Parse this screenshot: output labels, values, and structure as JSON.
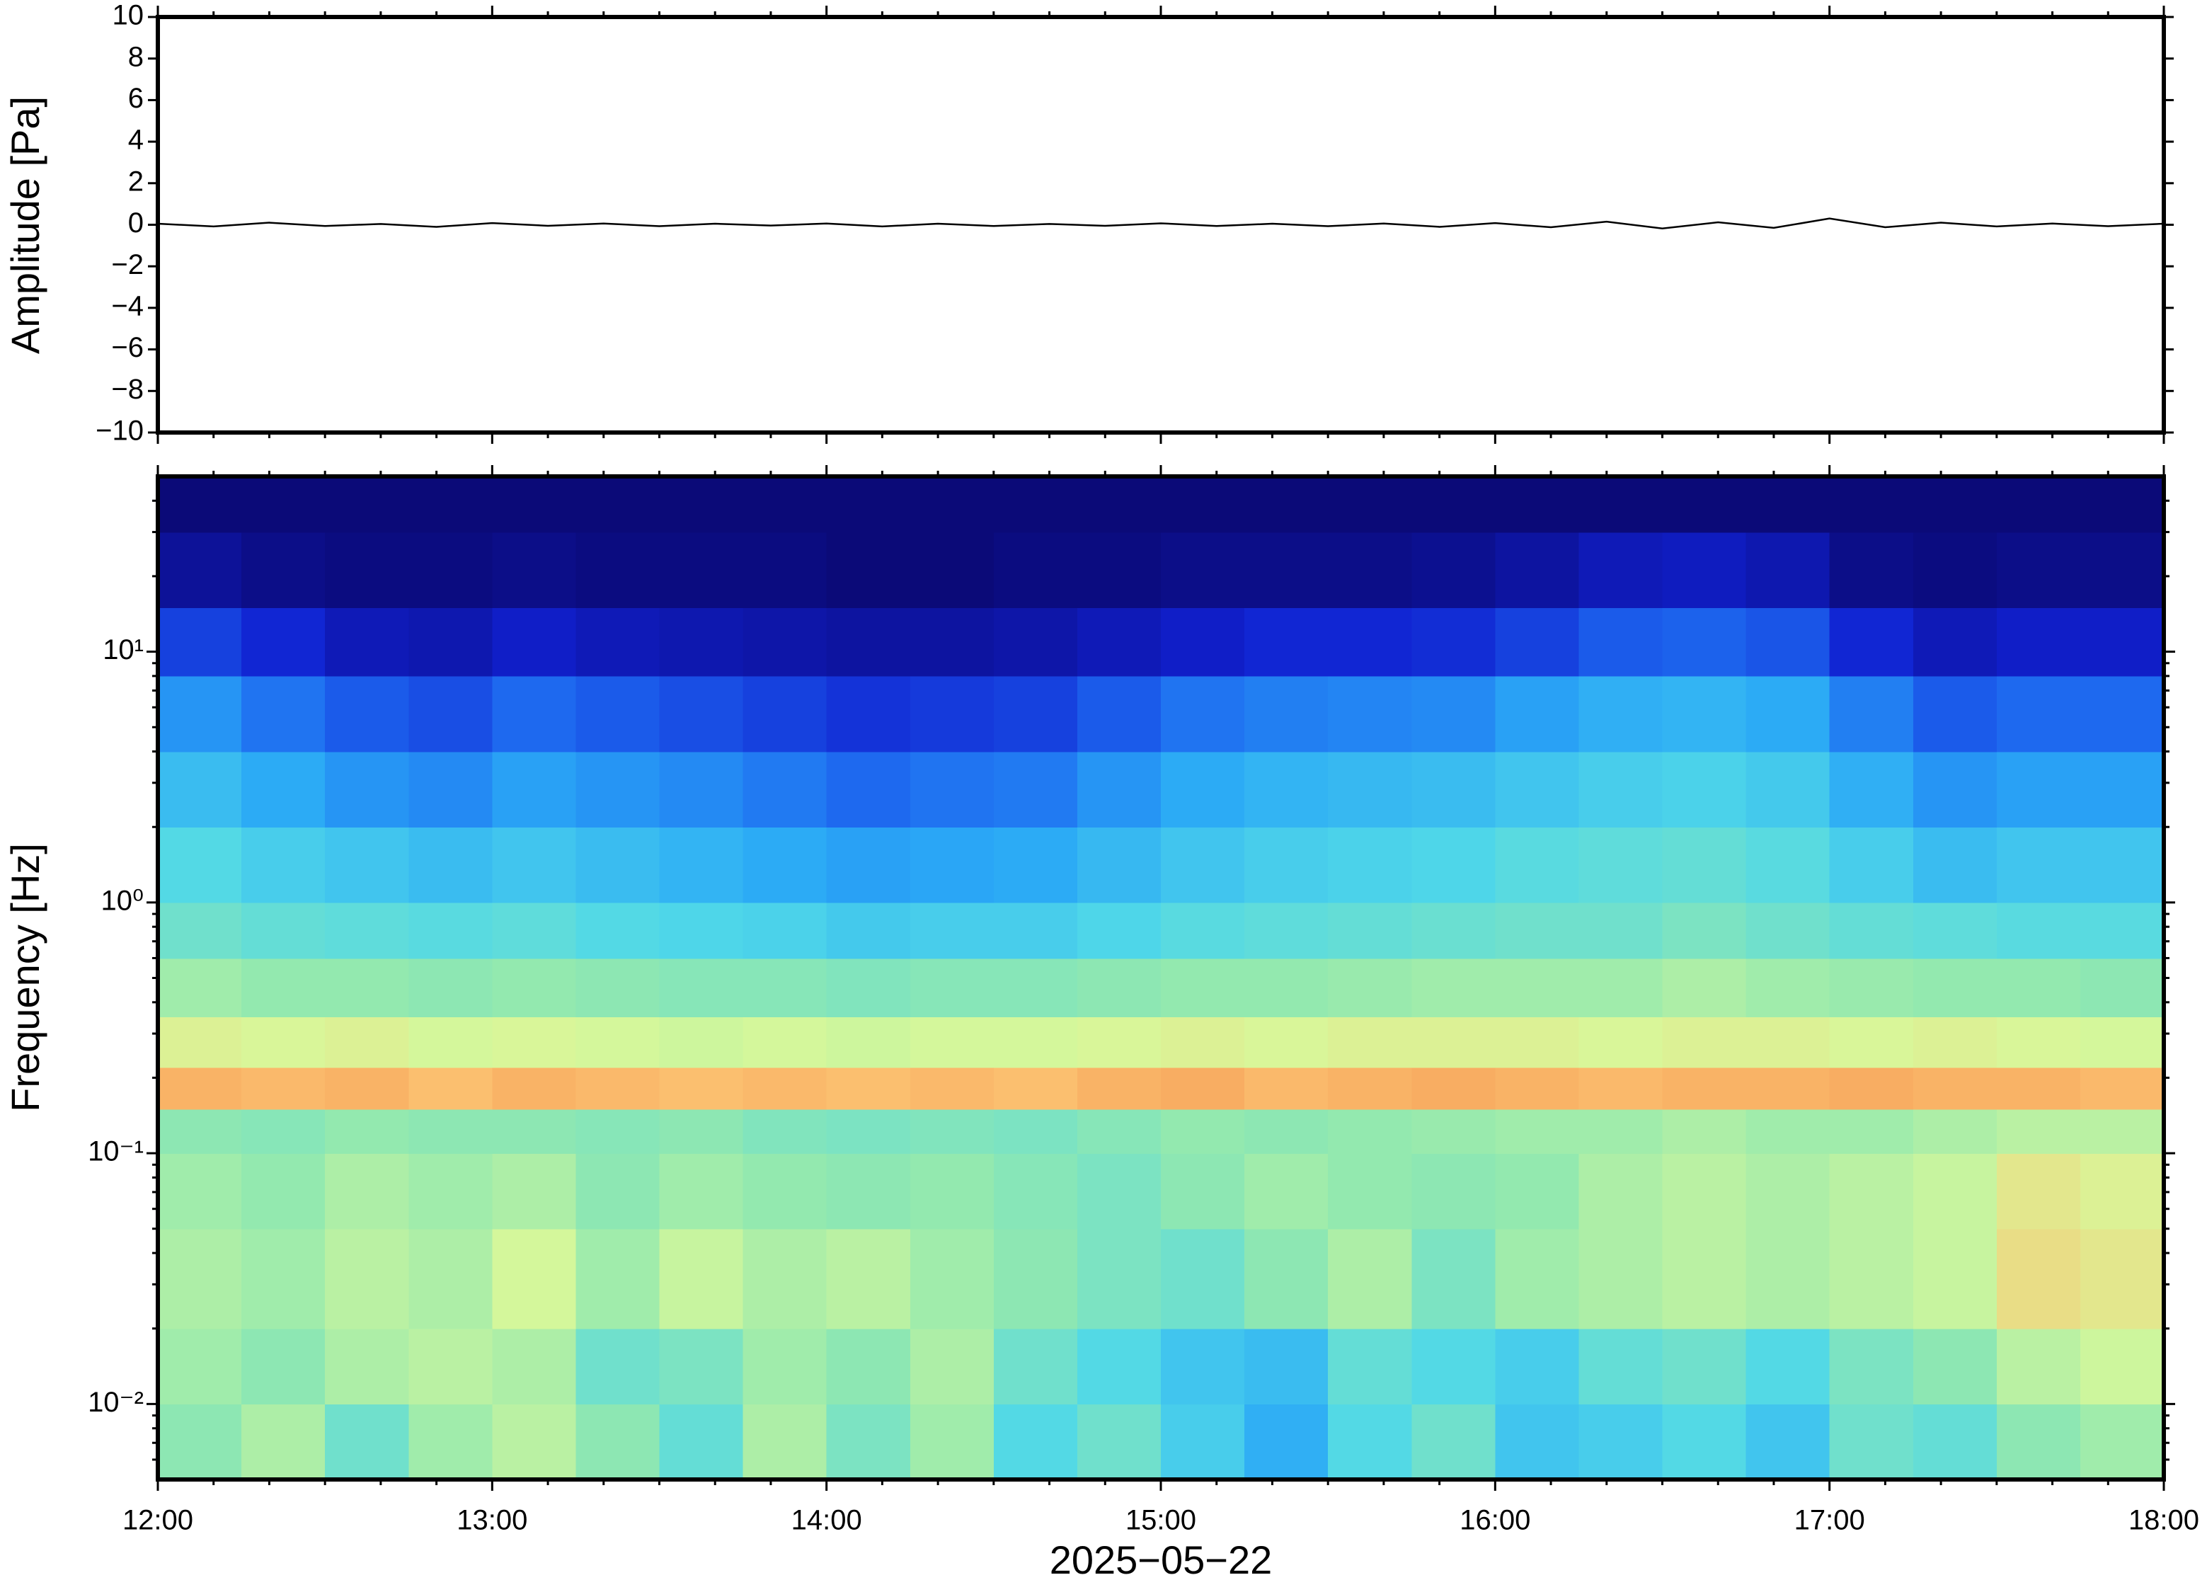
{
  "chart_data": [
    {
      "type": "line",
      "ylabel": "Amplitude [Pa]",
      "color": "#000000",
      "xlim": [
        12,
        18
      ],
      "x": [
        12,
        12.1667,
        12.3333,
        12.5,
        12.6667,
        12.8333,
        13,
        13.1667,
        13.3333,
        13.5,
        13.6667,
        13.8333,
        14,
        14.1667,
        14.3333,
        14.5,
        14.6667,
        14.8333,
        15,
        15.1667,
        15.3333,
        15.5,
        15.6667,
        15.8333,
        16,
        16.1667,
        16.3333,
        16.5,
        16.6667,
        16.8333,
        17,
        17.1667,
        17.3333,
        17.5,
        17.6667,
        17.8333,
        18
      ],
      "values": [
        0.05,
        -0.08,
        0.1,
        -0.06,
        0.04,
        -0.1,
        0.08,
        -0.05,
        0.06,
        -0.07,
        0.05,
        -0.04,
        0.06,
        -0.08,
        0.05,
        -0.06,
        0.04,
        -0.05,
        0.07,
        -0.06,
        0.05,
        -0.07,
        0.06,
        -0.1,
        0.08,
        -0.12,
        0.15,
        -0.18,
        0.12,
        -0.15,
        0.3,
        -0.12,
        0.1,
        -0.08,
        0.06,
        -0.07,
        0.05
      ],
      "ylim": [
        -10,
        10
      ],
      "yticks": [
        {
          "value": -10,
          "label": "−10"
        },
        {
          "value": -8,
          "label": "−8"
        },
        {
          "value": -6,
          "label": "−6"
        },
        {
          "value": -4,
          "label": "−4"
        },
        {
          "value": -2,
          "label": "−2"
        },
        0,
        2,
        4,
        6,
        8,
        10
      ]
    },
    {
      "type": "heatmap",
      "ylabel": "Frequency [Hz]",
      "xlabel": "2025−05−22",
      "log_y": true,
      "xlim": [
        12,
        18
      ],
      "xticks": [
        {
          "value": 12,
          "label": "12:00"
        },
        {
          "value": 13,
          "label": "13:00"
        },
        {
          "value": 14,
          "label": "14:00"
        },
        {
          "value": 15,
          "label": "15:00"
        },
        {
          "value": 16,
          "label": "16:00"
        },
        {
          "value": 17,
          "label": "17:00"
        },
        {
          "value": 18,
          "label": "18:00"
        }
      ],
      "ylim": [
        0.005,
        50
      ],
      "yticks": [
        {
          "value": 0.01,
          "label": "10⁻²"
        },
        {
          "value": 0.1,
          "label": "10⁻¹"
        },
        {
          "value": 1,
          "label": "10⁰"
        },
        {
          "value": 10,
          "label": "10¹"
        }
      ],
      "x_edges": [
        12,
        12.25,
        12.5,
        12.75,
        13,
        13.25,
        13.5,
        13.75,
        14,
        14.25,
        14.5,
        14.75,
        15,
        15.25,
        15.5,
        15.75,
        16,
        16.25,
        16.5,
        16.75,
        17,
        17.25,
        17.5,
        17.75,
        18
      ],
      "y_edges": [
        0.005,
        0.01,
        0.02,
        0.05,
        0.1,
        0.15,
        0.22,
        0.35,
        0.6,
        1,
        2,
        4,
        8,
        15,
        30,
        50
      ],
      "zlim": [
        0,
        1
      ],
      "colormap": [
        "#0b0a78",
        "#1020d0",
        "#1e6af0",
        "#2aa8f6",
        "#50d8e8",
        "#90e8b0",
        "#d8f89a",
        "#fbc070",
        "#f08040",
        "#d03020"
      ],
      "z": [
        [
          0.55,
          0.6,
          0.5,
          0.58,
          0.62,
          0.55,
          0.48,
          0.6,
          0.52,
          0.58,
          0.45,
          0.5,
          0.42,
          0.35,
          0.45,
          0.5,
          0.4,
          0.42,
          0.45,
          0.4,
          0.5,
          0.48,
          0.55,
          0.58
        ],
        [
          0.58,
          0.55,
          0.6,
          0.62,
          0.6,
          0.5,
          0.52,
          0.58,
          0.55,
          0.6,
          0.5,
          0.45,
          0.4,
          0.38,
          0.48,
          0.45,
          0.42,
          0.48,
          0.5,
          0.45,
          0.52,
          0.55,
          0.62,
          0.65
        ],
        [
          0.6,
          0.58,
          0.62,
          0.6,
          0.66,
          0.58,
          0.64,
          0.6,
          0.62,
          0.58,
          0.55,
          0.52,
          0.5,
          0.55,
          0.6,
          0.52,
          0.58,
          0.6,
          0.62,
          0.6,
          0.62,
          0.64,
          0.72,
          0.7
        ],
        [
          0.58,
          0.56,
          0.6,
          0.58,
          0.6,
          0.55,
          0.58,
          0.56,
          0.55,
          0.56,
          0.54,
          0.52,
          0.55,
          0.58,
          0.56,
          0.55,
          0.56,
          0.6,
          0.62,
          0.6,
          0.62,
          0.64,
          0.7,
          0.68
        ],
        [
          0.55,
          0.54,
          0.56,
          0.55,
          0.55,
          0.54,
          0.55,
          0.53,
          0.52,
          0.53,
          0.52,
          0.54,
          0.56,
          0.55,
          0.56,
          0.57,
          0.58,
          0.58,
          0.6,
          0.58,
          0.58,
          0.6,
          0.62,
          0.62
        ],
        [
          0.8,
          0.79,
          0.8,
          0.78,
          0.8,
          0.79,
          0.78,
          0.79,
          0.78,
          0.79,
          0.78,
          0.8,
          0.81,
          0.79,
          0.8,
          0.81,
          0.8,
          0.79,
          0.8,
          0.8,
          0.81,
          0.8,
          0.8,
          0.79
        ],
        [
          0.68,
          0.67,
          0.68,
          0.66,
          0.67,
          0.66,
          0.65,
          0.66,
          0.65,
          0.66,
          0.66,
          0.67,
          0.68,
          0.67,
          0.68,
          0.68,
          0.68,
          0.67,
          0.68,
          0.68,
          0.67,
          0.68,
          0.67,
          0.66
        ],
        [
          0.58,
          0.56,
          0.56,
          0.55,
          0.56,
          0.55,
          0.54,
          0.54,
          0.53,
          0.54,
          0.54,
          0.55,
          0.56,
          0.56,
          0.57,
          0.58,
          0.58,
          0.58,
          0.6,
          0.58,
          0.57,
          0.56,
          0.56,
          0.55
        ],
        [
          0.5,
          0.48,
          0.47,
          0.46,
          0.47,
          0.45,
          0.44,
          0.43,
          0.41,
          0.42,
          0.42,
          0.44,
          0.46,
          0.47,
          0.48,
          0.49,
          0.5,
          0.5,
          0.52,
          0.5,
          0.48,
          0.47,
          0.46,
          0.46
        ],
        [
          0.45,
          0.42,
          0.4,
          0.38,
          0.4,
          0.38,
          0.36,
          0.34,
          0.32,
          0.33,
          0.34,
          0.37,
          0.4,
          0.42,
          0.43,
          0.44,
          0.46,
          0.47,
          0.48,
          0.46,
          0.42,
          0.38,
          0.4,
          0.4
        ],
        [
          0.38,
          0.34,
          0.3,
          0.28,
          0.32,
          0.3,
          0.28,
          0.25,
          0.22,
          0.24,
          0.25,
          0.3,
          0.34,
          0.36,
          0.37,
          0.38,
          0.4,
          0.42,
          0.43,
          0.41,
          0.35,
          0.3,
          0.32,
          0.32
        ],
        [
          0.3,
          0.24,
          0.2,
          0.18,
          0.22,
          0.2,
          0.18,
          0.16,
          0.14,
          0.15,
          0.16,
          0.2,
          0.24,
          0.26,
          0.27,
          0.28,
          0.32,
          0.35,
          0.36,
          0.34,
          0.26,
          0.2,
          0.22,
          0.22
        ],
        [
          0.16,
          0.12,
          0.08,
          0.07,
          0.1,
          0.08,
          0.07,
          0.06,
          0.05,
          0.05,
          0.06,
          0.08,
          0.1,
          0.12,
          0.12,
          0.13,
          0.16,
          0.2,
          0.21,
          0.19,
          0.12,
          0.08,
          0.1,
          0.1
        ],
        [
          0.04,
          0.02,
          0.01,
          0.01,
          0.02,
          0.01,
          0.01,
          0.01,
          0,
          0,
          0.01,
          0.01,
          0.02,
          0.02,
          0.02,
          0.03,
          0.05,
          0.08,
          0.09,
          0.07,
          0.02,
          0.01,
          0.02,
          0.02
        ],
        [
          0,
          0,
          0,
          0,
          0,
          0,
          0,
          0,
          0,
          0,
          0,
          0,
          0,
          0,
          0,
          0,
          0,
          0,
          0,
          0,
          0,
          0,
          0,
          0
        ]
      ]
    }
  ]
}
